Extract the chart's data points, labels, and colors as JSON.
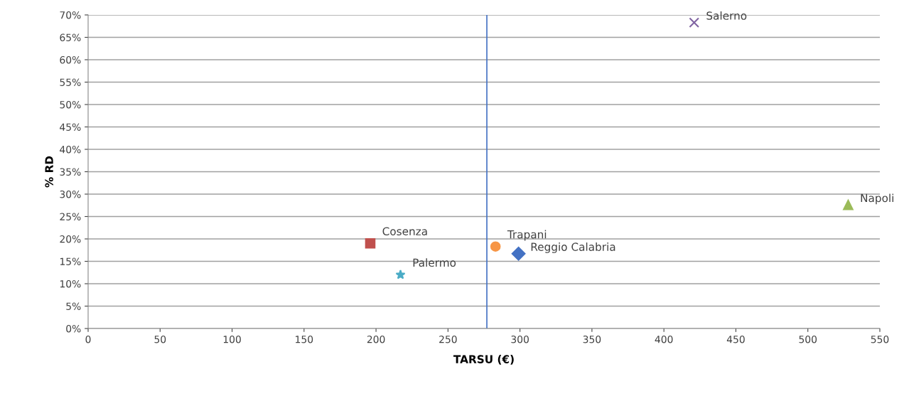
{
  "chart_data": {
    "type": "scatter",
    "xlabel": "TARSU (€)",
    "ylabel": "% RD",
    "xlim": [
      0,
      550
    ],
    "xticks": [
      0,
      50,
      100,
      150,
      200,
      250,
      300,
      350,
      400,
      450,
      500,
      550
    ],
    "ylim": [
      0,
      70
    ],
    "yticks": [
      {
        "value": 0,
        "label": "0%"
      },
      {
        "value": 5,
        "label": "5%"
      },
      {
        "value": 10,
        "label": "10%"
      },
      {
        "value": 15,
        "label": "15%"
      },
      {
        "value": 20,
        "label": "20%"
      },
      {
        "value": 25,
        "label": "25%"
      },
      {
        "value": 30,
        "label": "30%"
      },
      {
        "value": 35,
        "label": "35%"
      },
      {
        "value": 40,
        "label": "40%"
      },
      {
        "value": 45,
        "label": "45%"
      },
      {
        "value": 50,
        "label": "50%"
      },
      {
        "value": 55,
        "label": "55%"
      },
      {
        "value": 60,
        "label": "60%"
      },
      {
        "value": 65,
        "label": "65%"
      },
      {
        "value": 70,
        "label": "70%"
      }
    ],
    "grid": "y",
    "legend": false,
    "ref_lines": [
      {
        "axis": "x",
        "value": 277,
        "color": "#4472c4"
      }
    ],
    "series": [
      {
        "name": "Reggio Calabria",
        "color": "#4472c4",
        "marker": "diamond",
        "x": [
          299
        ],
        "values": [
          16.7
        ]
      },
      {
        "name": "Cosenza",
        "color": "#c0504d",
        "marker": "square",
        "x": [
          196
        ],
        "values": [
          19
        ]
      },
      {
        "name": "Napoli",
        "color": "#9bbb59",
        "marker": "triangle",
        "x": [
          528
        ],
        "values": [
          27.6
        ]
      },
      {
        "name": "Salerno",
        "color": "#8064a2",
        "marker": "cross",
        "x": [
          421
        ],
        "values": [
          68.3
        ]
      },
      {
        "name": "Palermo",
        "color": "#4bacc6",
        "marker": "star",
        "x": [
          217
        ],
        "values": [
          12
        ]
      },
      {
        "name": "Trapani",
        "color": "#f79646",
        "marker": "circle",
        "x": [
          283
        ],
        "values": [
          18.3
        ]
      }
    ]
  }
}
